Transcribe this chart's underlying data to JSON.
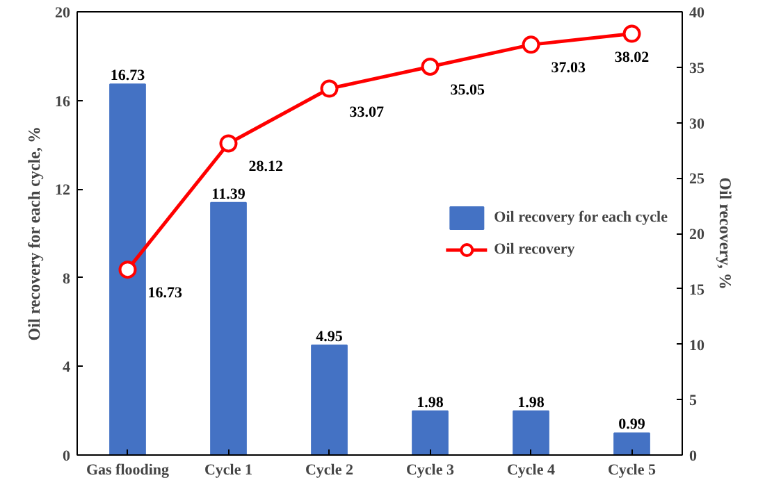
{
  "chart_data": {
    "type": "bar",
    "categories": [
      "Gas flooding",
      "Cycle 1",
      "Cycle 2",
      "Cycle 3",
      "Cycle 4",
      "Cycle 5"
    ],
    "ylabel": "Oil recovery for each cycle, %",
    "y2label": "Oil recovery, %",
    "ylim": [
      0,
      20
    ],
    "yticks": [
      0,
      4,
      8,
      12,
      16,
      20
    ],
    "y2lim": [
      0,
      40
    ],
    "y2ticks": [
      0,
      5,
      10,
      15,
      20,
      25,
      30,
      35,
      40
    ],
    "series": [
      {
        "name": "Oil recovery for each cycle",
        "color": "#4472c4",
        "values": [
          16.73,
          11.39,
          4.95,
          1.98,
          1.98,
          0.99
        ]
      },
      {
        "name": "Oil recovery",
        "type": "line",
        "axis": "y2",
        "color": "#ff0000",
        "marker": "circle",
        "values": [
          16.73,
          28.12,
          33.07,
          35.05,
          37.03,
          38.02
        ]
      }
    ],
    "data_labels": true,
    "legend": "center right",
    "grid": false
  }
}
